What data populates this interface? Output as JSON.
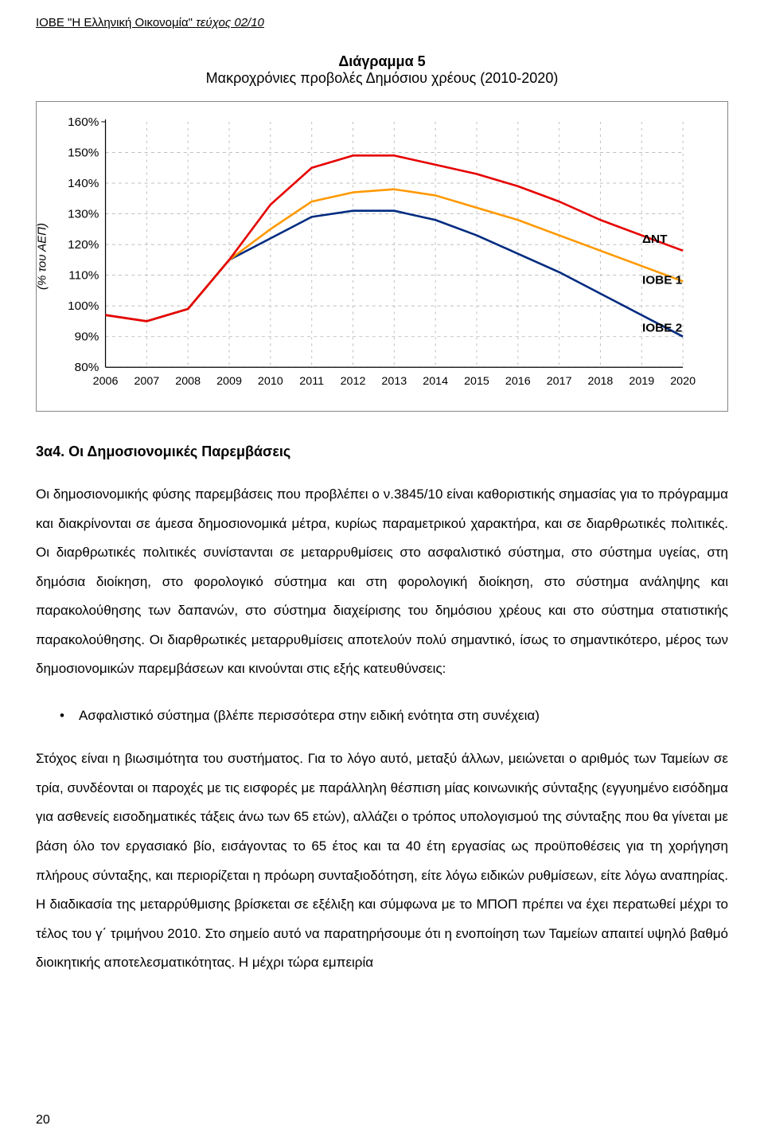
{
  "header": {
    "org": "ΙΟΒΕ \"Η Ελληνική Οικονομία\"",
    "issue": "τεύχος 02/10"
  },
  "chart": {
    "type": "line",
    "title_line1": "Διάγραμμα 5",
    "title_line2": "Μακροχρόνιες προβολές Δημόσιου χρέους (2010-2020)",
    "y_axis_label": "(% του ΑΕΠ)",
    "x_categories": [
      "2006",
      "2007",
      "2008",
      "2009",
      "2010",
      "2011",
      "2012",
      "2013",
      "2014",
      "2015",
      "2016",
      "2017",
      "2018",
      "2019",
      "2020"
    ],
    "y_ticks": [
      "80%",
      "90%",
      "100%",
      "110%",
      "120%",
      "130%",
      "140%",
      "150%",
      "160%"
    ],
    "ylim": [
      80,
      160
    ],
    "ytick_step": 10,
    "legend_labels": {
      "dnt": "ΔΝΤ",
      "iobe1": "ΙΟΒΕ 1",
      "iobe2": "ΙΟΒΕ 2"
    },
    "legend_colors": {
      "dnt": "#e60000",
      "iobe1": "#ff9900",
      "iobe2": "#002b80"
    },
    "background_color": "#ffffff",
    "grid_color": "#bfbfbf",
    "frame_color": "#000000",
    "line_width": 2.6,
    "series": {
      "dnt": {
        "color": "#e60000",
        "values": [
          97,
          95,
          99,
          115,
          133,
          145,
          149,
          149,
          146,
          143,
          139,
          134,
          128,
          123,
          118
        ]
      },
      "iobe1": {
        "color": "#ff9900",
        "values": [
          97,
          95,
          99,
          115,
          125,
          134,
          137,
          138,
          136,
          132,
          128,
          123,
          118,
          113,
          108
        ]
      },
      "iobe2": {
        "color": "#002b80",
        "values": [
          97,
          95,
          99,
          115,
          122,
          129,
          131,
          131,
          128,
          123,
          117,
          111,
          104,
          97,
          90
        ]
      }
    }
  },
  "section_heading": "3α4. Οι Δημοσιονομικές Παρεμβάσεις",
  "para1": "Οι δημοσιονομικής φύσης παρεμβάσεις που προβλέπει ο ν.3845/10 είναι καθοριστικής σημασίας για το πρόγραμμα και διακρίνονται σε άμεσα δημοσιονομικά μέτρα, κυρίως παραμετρικού χαρακτήρα, και σε διαρθρωτικές πολιτικές. Οι διαρθρωτικές πολιτικές συνίστανται σε μεταρρυθμίσεις στο ασφαλιστικό σύστημα, στο σύστημα υγείας, στη δημόσια διοίκηση, στο φορολογικό σύστημα και στη φορολογική διοίκηση, στο σύστημα ανάληψης και παρακολούθησης των δαπανών, στο σύστημα διαχείρισης του δημόσιου χρέους και στο σύστημα στατιστικής παρακολούθησης. Οι διαρθρωτικές μεταρρυθμίσεις αποτελούν πολύ σημαντικό, ίσως το σημαντικότερο, μέρος των δημοσιονομικών παρεμβάσεων και κινούνται στις εξής κατευθύνσεις:",
  "bullet1": "Ασφαλιστικό σύστημα (βλέπε περισσότερα στην ειδική ενότητα στη συνέχεια)",
  "para2": "Στόχος είναι η βιωσιμότητα του συστήματος. Για το λόγο αυτό, μεταξύ άλλων, μειώνεται ο αριθμός των Ταμείων σε τρία, συνδέονται οι παροχές με τις εισφορές με παράλληλη θέσπιση μίας κοινωνικής σύνταξης (εγγυημένο εισόδημα για ασθενείς εισοδηματικές τάξεις άνω των 65 ετών), αλλάζει ο τρόπος υπολογισμού της σύνταξης που θα γίνεται με βάση όλο τον εργασιακό βίο, εισάγοντας το 65 έτος και τα 40 έτη εργασίας ως προϋποθέσεις για τη χορήγηση πλήρους σύνταξης, και περιορίζεται η πρόωρη συνταξιοδότηση, είτε λόγω ειδικών ρυθμίσεων, είτε λόγω αναπηρίας. Η διαδικασία της μεταρρύθμισης βρίσκεται σε εξέλιξη και σύμφωνα με το ΜΠΟΠ πρέπει να έχει περατωθεί μέχρι το τέλος του γ΄ τριμήνου 2010. Στο σημείο αυτό να παρατηρήσουμε ότι η ενοποίηση των Ταμείων απαιτεί υψηλό βαθμό διοικητικής αποτελεσματικότητας. Η μέχρι τώρα εμπειρία",
  "page_number": "20"
}
